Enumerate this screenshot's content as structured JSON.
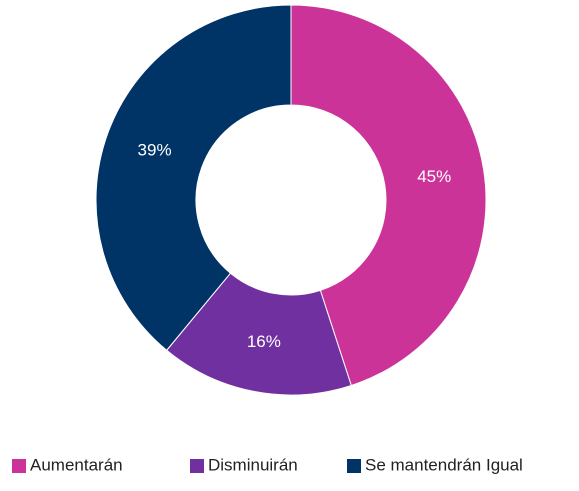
{
  "chart_data": {
    "type": "donut",
    "categories": [
      "Aumentarán",
      "Disminuirán",
      "Se mantendrán Igual"
    ],
    "values": [
      45,
      16,
      39
    ],
    "value_labels": [
      "45%",
      "16%",
      "39%"
    ],
    "colors": [
      "#cc3399",
      "#7030a0",
      "#003366"
    ],
    "legend": "bottom"
  }
}
